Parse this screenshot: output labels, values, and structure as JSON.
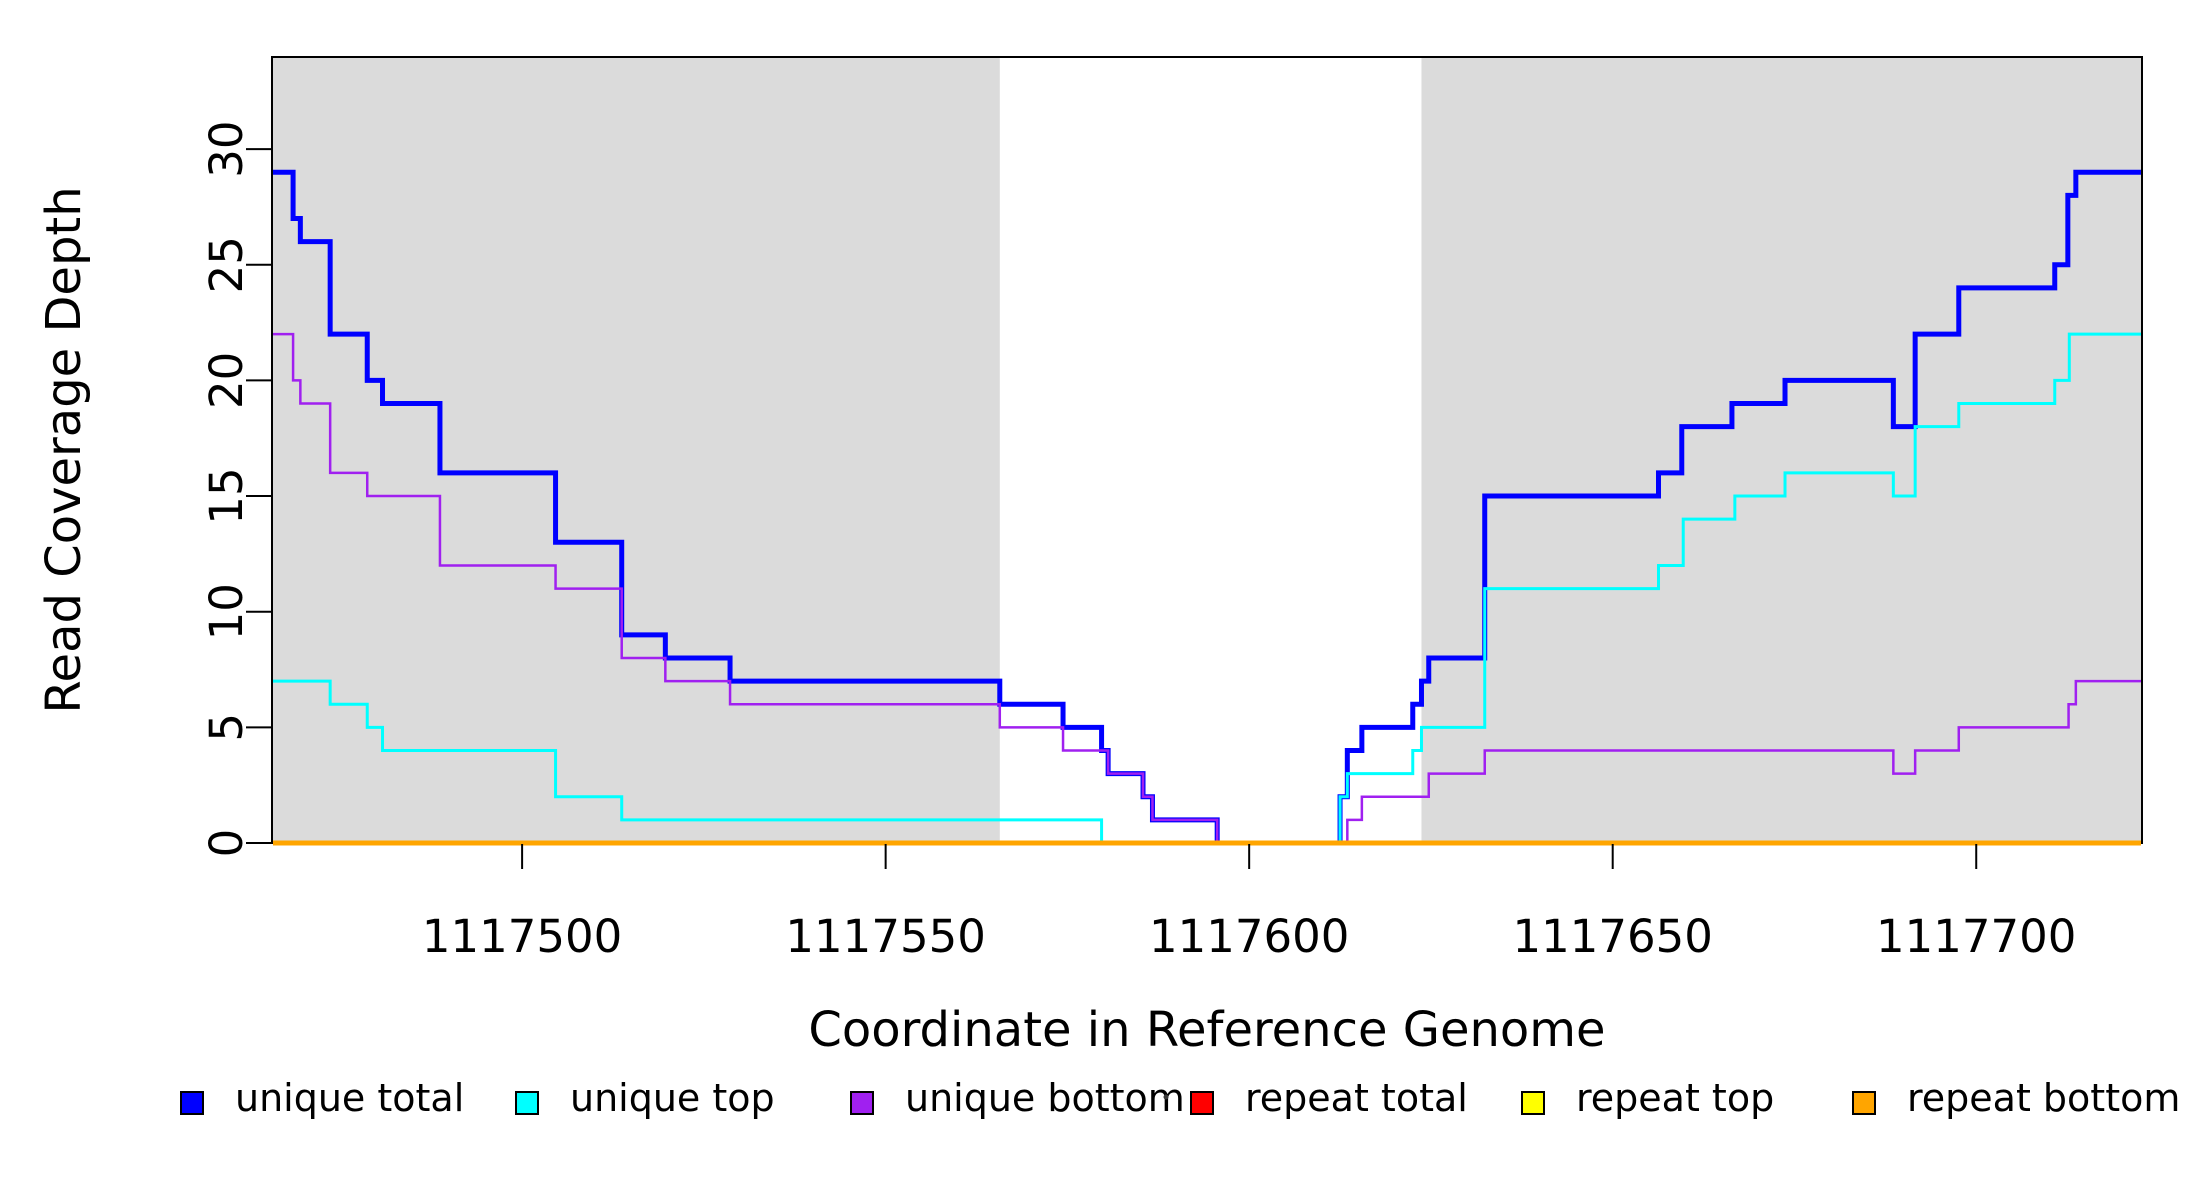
{
  "chart_data": {
    "type": "line",
    "subtype": "step",
    "title": "",
    "xlabel": "Coordinate in Reference Genome",
    "ylabel": "Read Coverage Depth",
    "x_axis": {
      "title": "Coordinate in Reference Genome",
      "lim": [
        1117465.6,
        1117722.8
      ],
      "ticks": [
        1117500,
        1117550,
        1117600,
        1117650,
        1117700
      ],
      "tick_labels": [
        "1117500",
        "1117550",
        "1117600",
        "1117650",
        "1117700"
      ]
    },
    "y_axis": {
      "title": "Read Coverage Depth",
      "lim": [
        0,
        34
      ],
      "ticks": [
        0,
        5,
        10,
        15,
        20,
        25,
        30
      ],
      "tick_labels": [
        "0",
        "5",
        "10",
        "15",
        "20",
        "25",
        "30"
      ]
    },
    "grid": false,
    "shade_color": "#DBDBDB",
    "shaded_regions": [
      [
        1117465.6,
        1117565.7
      ],
      [
        1117623.7,
        1117722.8
      ]
    ],
    "x_end": 1117722.8,
    "series": [
      {
        "name": "unique total",
        "color": "#0000FF",
        "width": 5,
        "points": [
          [
            1117465.6,
            29
          ],
          [
            1117468.5,
            27
          ],
          [
            1117469.5,
            26
          ],
          [
            1117473.6,
            22
          ],
          [
            1117478.7,
            20
          ],
          [
            1117480.8,
            19
          ],
          [
            1117488.7,
            16
          ],
          [
            1117504.6,
            13
          ],
          [
            1117513.7,
            9
          ],
          [
            1117519.7,
            8
          ],
          [
            1117528.6,
            7
          ],
          [
            1117565.7,
            6
          ],
          [
            1117574.4,
            5
          ],
          [
            1117579.7,
            4
          ],
          [
            1117580.6,
            3
          ],
          [
            1117585.4,
            2
          ],
          [
            1117586.7,
            1
          ],
          [
            1117595.6,
            0
          ],
          [
            1117612.5,
            2
          ],
          [
            1117613.5,
            4
          ],
          [
            1117615.5,
            5
          ],
          [
            1117622.5,
            6
          ],
          [
            1117623.7,
            7
          ],
          [
            1117624.7,
            8
          ],
          [
            1117632.4,
            15
          ],
          [
            1117656.3,
            16
          ],
          [
            1117659.5,
            18
          ],
          [
            1117666.4,
            19
          ],
          [
            1117673.7,
            20
          ],
          [
            1117688.6,
            18
          ],
          [
            1117691.6,
            22
          ],
          [
            1117697.6,
            24
          ],
          [
            1117710.8,
            25
          ],
          [
            1117712.6,
            28
          ],
          [
            1117713.7,
            29
          ]
        ]
      },
      {
        "name": "unique top",
        "color": "#00FFFF",
        "width": 3,
        "points": [
          [
            1117465.6,
            7
          ],
          [
            1117473.6,
            6
          ],
          [
            1117478.7,
            5
          ],
          [
            1117480.8,
            4
          ],
          [
            1117504.6,
            2
          ],
          [
            1117513.7,
            1
          ],
          [
            1117579.7,
            0
          ],
          [
            1117612.5,
            2
          ],
          [
            1117613.5,
            3
          ],
          [
            1117622.5,
            4
          ],
          [
            1117623.7,
            5
          ],
          [
            1117632.4,
            11
          ],
          [
            1117656.3,
            12
          ],
          [
            1117659.7,
            14
          ],
          [
            1117666.8,
            15
          ],
          [
            1117673.7,
            16
          ],
          [
            1117688.6,
            15
          ],
          [
            1117691.6,
            18
          ],
          [
            1117697.6,
            19
          ],
          [
            1117710.8,
            20
          ],
          [
            1117712.8,
            22
          ]
        ]
      },
      {
        "name": "unique bottom",
        "color": "#A020F0",
        "width": 2.5,
        "points": [
          [
            1117465.6,
            22
          ],
          [
            1117468.5,
            20
          ],
          [
            1117469.5,
            19
          ],
          [
            1117473.6,
            16
          ],
          [
            1117478.7,
            15
          ],
          [
            1117488.7,
            12
          ],
          [
            1117504.6,
            11
          ],
          [
            1117513.7,
            8
          ],
          [
            1117519.7,
            7
          ],
          [
            1117528.6,
            6
          ],
          [
            1117565.7,
            5
          ],
          [
            1117574.4,
            4
          ],
          [
            1117580.6,
            3
          ],
          [
            1117585.4,
            2
          ],
          [
            1117586.7,
            1
          ],
          [
            1117595.6,
            0
          ],
          [
            1117613.5,
            1
          ],
          [
            1117615.5,
            2
          ],
          [
            1117624.7,
            3
          ],
          [
            1117632.4,
            4
          ],
          [
            1117688.6,
            3
          ],
          [
            1117691.6,
            4
          ],
          [
            1117697.6,
            5
          ],
          [
            1117712.7,
            6
          ],
          [
            1117713.7,
            7
          ]
        ]
      },
      {
        "name": "repeat total",
        "color": "#FF0000",
        "width": 3,
        "points": [
          [
            1117465.6,
            0
          ]
        ]
      },
      {
        "name": "repeat top",
        "color": "#FFFF00",
        "width": 3,
        "points": [
          [
            1117465.6,
            0
          ]
        ]
      },
      {
        "name": "repeat bottom",
        "color": "#FFA500",
        "width": 5,
        "points": [
          [
            1117465.6,
            0
          ]
        ]
      }
    ],
    "legend": {
      "position": "bottom",
      "entries": [
        {
          "label": "unique total",
          "color": "#0000FF"
        },
        {
          "label": "unique top",
          "color": "#00FFFF"
        },
        {
          "label": "unique bottom",
          "color": "#A020F0"
        },
        {
          "label": "repeat total",
          "color": "#FF0000"
        },
        {
          "label": "repeat top",
          "color": "#FFFF00"
        },
        {
          "label": "repeat bottom",
          "color": "#FFA500"
        }
      ],
      "stray_mark": "."
    }
  }
}
